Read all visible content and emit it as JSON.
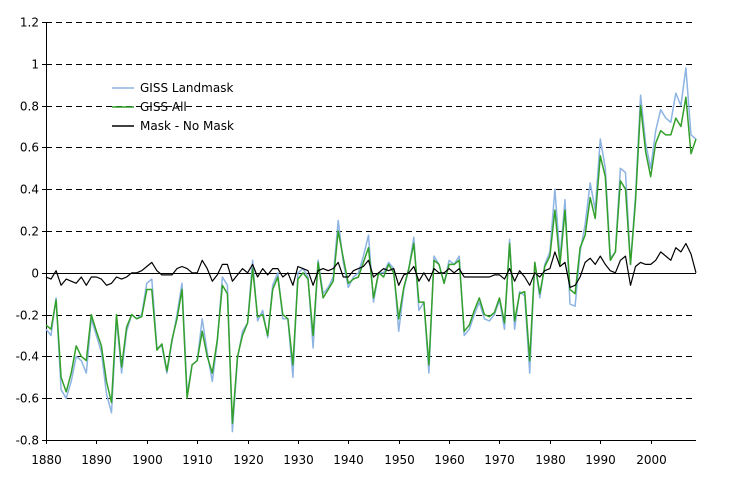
{
  "chart_data": {
    "type": "line",
    "title": "",
    "xlabel": "",
    "ylabel": "",
    "xlim": [
      1880,
      2009
    ],
    "ylim": [
      -0.8,
      1.2
    ],
    "grid": "horizontal dashed",
    "legend_position": "top-left",
    "x_ticks": [
      "1880",
      "1890",
      "1900",
      "1910",
      "1920",
      "1930",
      "1940",
      "1950",
      "1960",
      "1970",
      "1980",
      "1990",
      "2000"
    ],
    "x_tick_values": [
      1880,
      1890,
      1900,
      1910,
      1920,
      1930,
      1940,
      1950,
      1960,
      1970,
      1980,
      1990,
      2000
    ],
    "y_ticks": [
      "-0.8",
      "-0.6",
      "-0.4",
      "-0.2",
      "0",
      "0.2",
      "0.4",
      "0.6",
      "0.8",
      "1",
      "1.2"
    ],
    "y_tick_values": [
      -0.8,
      -0.6,
      -0.4,
      -0.2,
      0,
      0.2,
      0.4,
      0.6,
      0.8,
      1,
      1.2
    ],
    "series": [
      {
        "name": "GISS Landmask",
        "color": "#8db4e2",
        "x": [
          1880,
          1881,
          1882,
          1883,
          1884,
          1885,
          1886,
          1887,
          1888,
          1889,
          1890,
          1891,
          1892,
          1893,
          1894,
          1895,
          1896,
          1897,
          1898,
          1899,
          1900,
          1901,
          1902,
          1903,
          1904,
          1905,
          1906,
          1907,
          1908,
          1909,
          1910,
          1911,
          1912,
          1913,
          1914,
          1915,
          1916,
          1917,
          1918,
          1919,
          1920,
          1921,
          1922,
          1923,
          1924,
          1925,
          1926,
          1927,
          1928,
          1929,
          1930,
          1931,
          1932,
          1933,
          1934,
          1935,
          1936,
          1937,
          1938,
          1939,
          1940,
          1941,
          1942,
          1943,
          1944,
          1945,
          1946,
          1947,
          1948,
          1949,
          1950,
          1951,
          1952,
          1953,
          1954,
          1955,
          1956,
          1957,
          1958,
          1959,
          1960,
          1961,
          1962,
          1963,
          1964,
          1965,
          1966,
          1967,
          1968,
          1969,
          1970,
          1971,
          1972,
          1973,
          1974,
          1975,
          1976,
          1977,
          1978,
          1979,
          1980,
          1981,
          1982,
          1983,
          1984,
          1985,
          1986,
          1987,
          1988,
          1989,
          1990,
          1991,
          1992,
          1993,
          1994,
          1995,
          1996,
          1997,
          1998,
          1999,
          2000,
          2001,
          2002,
          2003,
          2004,
          2005,
          2006,
          2007,
          2008,
          2009
        ],
        "values": [
          -0.27,
          -0.3,
          -0.12,
          -0.56,
          -0.6,
          -0.52,
          -0.4,
          -0.42,
          -0.48,
          -0.22,
          -0.3,
          -0.38,
          -0.58,
          -0.67,
          -0.22,
          -0.48,
          -0.28,
          -0.2,
          -0.22,
          -0.2,
          -0.05,
          -0.03,
          -0.36,
          -0.35,
          -0.48,
          -0.33,
          -0.2,
          -0.05,
          -0.58,
          -0.44,
          -0.42,
          -0.22,
          -0.38,
          -0.52,
          -0.33,
          -0.02,
          -0.06,
          -0.76,
          -0.41,
          -0.28,
          -0.24,
          0.06,
          -0.23,
          -0.18,
          -0.31,
          -0.06,
          0.0,
          -0.22,
          -0.22,
          -0.5,
          0.0,
          0.02,
          -0.02,
          -0.36,
          0.06,
          -0.1,
          -0.07,
          -0.02,
          0.25,
          0.05,
          -0.07,
          -0.02,
          0.0,
          0.08,
          0.18,
          -0.14,
          0.0,
          0.0,
          0.05,
          0.02,
          -0.28,
          -0.08,
          0.02,
          0.17,
          -0.18,
          -0.14,
          -0.48,
          0.08,
          0.04,
          -0.05,
          0.06,
          0.04,
          0.08,
          -0.3,
          -0.27,
          -0.2,
          -0.14,
          -0.22,
          -0.23,
          -0.2,
          -0.13,
          -0.27,
          0.16,
          -0.27,
          -0.09,
          -0.11,
          -0.48,
          0.05,
          -0.12,
          0.04,
          0.1,
          0.4,
          0.07,
          0.35,
          -0.15,
          -0.16,
          0.1,
          0.23,
          0.43,
          0.3,
          0.64,
          0.5,
          0.07,
          0.1,
          0.5,
          0.48,
          0.04,
          0.37,
          0.85,
          0.62,
          0.5,
          0.68,
          0.78,
          0.74,
          0.72,
          0.86,
          0.8,
          0.98,
          0.66,
          0.64
        ]
      },
      {
        "name": "GISS All",
        "color": "#33a02c",
        "x": [
          1880,
          1881,
          1882,
          1883,
          1884,
          1885,
          1886,
          1887,
          1888,
          1889,
          1890,
          1891,
          1892,
          1893,
          1894,
          1895,
          1896,
          1897,
          1898,
          1899,
          1900,
          1901,
          1902,
          1903,
          1904,
          1905,
          1906,
          1907,
          1908,
          1909,
          1910,
          1911,
          1912,
          1913,
          1914,
          1915,
          1916,
          1917,
          1918,
          1919,
          1920,
          1921,
          1922,
          1923,
          1924,
          1925,
          1926,
          1927,
          1928,
          1929,
          1930,
          1931,
          1932,
          1933,
          1934,
          1935,
          1936,
          1937,
          1938,
          1939,
          1940,
          1941,
          1942,
          1943,
          1944,
          1945,
          1946,
          1947,
          1948,
          1949,
          1950,
          1951,
          1952,
          1953,
          1954,
          1955,
          1956,
          1957,
          1958,
          1959,
          1960,
          1961,
          1962,
          1963,
          1964,
          1965,
          1966,
          1967,
          1968,
          1969,
          1970,
          1971,
          1972,
          1973,
          1974,
          1975,
          1976,
          1977,
          1978,
          1979,
          1980,
          1981,
          1982,
          1983,
          1984,
          1985,
          1986,
          1987,
          1988,
          1989,
          1990,
          1991,
          1992,
          1993,
          1994,
          1995,
          1996,
          1997,
          1998,
          1999,
          2000,
          2001,
          2002,
          2003,
          2004,
          2005,
          2006,
          2007,
          2008,
          2009
        ],
        "values": [
          -0.25,
          -0.27,
          -0.13,
          -0.5,
          -0.57,
          -0.48,
          -0.35,
          -0.4,
          -0.42,
          -0.2,
          -0.28,
          -0.35,
          -0.52,
          -0.62,
          -0.2,
          -0.45,
          -0.26,
          -0.2,
          -0.22,
          -0.21,
          -0.08,
          -0.08,
          -0.37,
          -0.34,
          -0.47,
          -0.32,
          -0.22,
          -0.08,
          -0.6,
          -0.44,
          -0.42,
          -0.28,
          -0.4,
          -0.48,
          -0.32,
          -0.06,
          -0.1,
          -0.72,
          -0.4,
          -0.3,
          -0.24,
          0.02,
          -0.21,
          -0.2,
          -0.3,
          -0.08,
          -0.02,
          -0.2,
          -0.22,
          -0.44,
          -0.03,
          0.0,
          -0.03,
          -0.3,
          0.05,
          -0.12,
          -0.08,
          -0.04,
          0.2,
          0.07,
          -0.05,
          -0.03,
          -0.02,
          0.05,
          0.12,
          -0.12,
          0.0,
          -0.02,
          0.04,
          0.0,
          -0.22,
          -0.07,
          0.02,
          0.14,
          -0.14,
          -0.14,
          -0.44,
          0.06,
          0.04,
          -0.05,
          0.04,
          0.04,
          0.06,
          -0.28,
          -0.25,
          -0.18,
          -0.12,
          -0.2,
          -0.21,
          -0.19,
          -0.12,
          -0.24,
          0.14,
          -0.23,
          -0.1,
          -0.09,
          -0.42,
          0.05,
          -0.1,
          0.03,
          0.08,
          0.3,
          0.04,
          0.3,
          -0.08,
          -0.1,
          0.12,
          0.18,
          0.36,
          0.26,
          0.56,
          0.46,
          0.06,
          0.1,
          0.44,
          0.4,
          0.04,
          0.34,
          0.8,
          0.58,
          0.46,
          0.62,
          0.68,
          0.66,
          0.66,
          0.74,
          0.7,
          0.84,
          0.57,
          0.64
        ]
      },
      {
        "name": "Mask - No Mask",
        "color": "#000000",
        "x": [
          1880,
          1881,
          1882,
          1883,
          1884,
          1885,
          1886,
          1887,
          1888,
          1889,
          1890,
          1891,
          1892,
          1893,
          1894,
          1895,
          1896,
          1897,
          1898,
          1899,
          1900,
          1901,
          1902,
          1903,
          1904,
          1905,
          1906,
          1907,
          1908,
          1909,
          1910,
          1911,
          1912,
          1913,
          1914,
          1915,
          1916,
          1917,
          1918,
          1919,
          1920,
          1921,
          1922,
          1923,
          1924,
          1925,
          1926,
          1927,
          1928,
          1929,
          1930,
          1931,
          1932,
          1933,
          1934,
          1935,
          1936,
          1937,
          1938,
          1939,
          1940,
          1941,
          1942,
          1943,
          1944,
          1945,
          1946,
          1947,
          1948,
          1949,
          1950,
          1951,
          1952,
          1953,
          1954,
          1955,
          1956,
          1957,
          1958,
          1959,
          1960,
          1961,
          1962,
          1963,
          1964,
          1965,
          1966,
          1967,
          1968,
          1969,
          1970,
          1971,
          1972,
          1973,
          1974,
          1975,
          1976,
          1977,
          1978,
          1979,
          1980,
          1981,
          1982,
          1983,
          1984,
          1985,
          1986,
          1987,
          1988,
          1989,
          1990,
          1991,
          1992,
          1993,
          1994,
          1995,
          1996,
          1997,
          1998,
          1999,
          2000,
          2001,
          2002,
          2003,
          2004,
          2005,
          2006,
          2007,
          2008,
          2009
        ],
        "values": [
          -0.02,
          -0.03,
          0.01,
          -0.06,
          -0.03,
          -0.04,
          -0.05,
          -0.02,
          -0.06,
          -0.02,
          -0.02,
          -0.03,
          -0.06,
          -0.05,
          -0.02,
          -0.03,
          -0.02,
          0.0,
          0.0,
          0.01,
          0.03,
          0.05,
          0.01,
          -0.01,
          -0.01,
          -0.01,
          0.02,
          0.03,
          0.02,
          0.0,
          0.0,
          0.06,
          0.02,
          -0.04,
          -0.01,
          0.04,
          0.04,
          -0.04,
          -0.01,
          0.02,
          0.0,
          0.04,
          -0.02,
          0.02,
          -0.01,
          0.02,
          0.02,
          -0.02,
          0.0,
          -0.06,
          0.03,
          0.02,
          0.01,
          -0.06,
          0.01,
          0.02,
          0.01,
          0.02,
          0.05,
          -0.02,
          -0.02,
          0.01,
          0.02,
          0.03,
          0.06,
          -0.02,
          0.0,
          0.02,
          0.01,
          0.02,
          -0.06,
          -0.01,
          0.0,
          0.03,
          -0.04,
          0.0,
          -0.04,
          0.02,
          0.0,
          0.0,
          0.02,
          0.0,
          0.02,
          -0.02,
          -0.02,
          -0.02,
          -0.02,
          -0.02,
          -0.02,
          -0.01,
          -0.01,
          -0.03,
          0.02,
          -0.04,
          0.01,
          -0.02,
          -0.06,
          0.0,
          -0.02,
          0.01,
          0.02,
          0.1,
          0.03,
          0.05,
          -0.07,
          -0.06,
          -0.02,
          0.05,
          0.07,
          0.04,
          0.08,
          0.04,
          0.01,
          0.0,
          0.06,
          0.08,
          -0.06,
          0.03,
          0.05,
          0.04,
          0.04,
          0.06,
          0.1,
          0.08,
          0.06,
          0.12,
          0.1,
          0.14,
          0.09,
          0.0
        ]
      }
    ]
  }
}
